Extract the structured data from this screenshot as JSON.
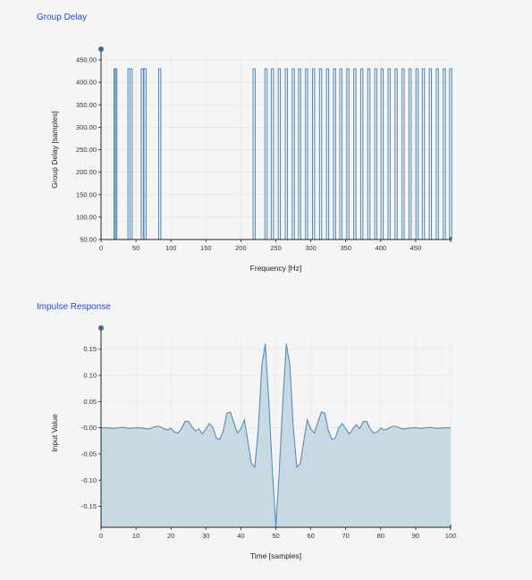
{
  "chart_data": [
    {
      "type": "line",
      "title": "Group Delay",
      "xlabel": "Frequency [Hz]",
      "ylabel": "Group Delay [samples]",
      "xlim": [
        0,
        500
      ],
      "ylim": [
        50,
        450
      ],
      "x_ticks": [
        0,
        50,
        100,
        150,
        200,
        250,
        300,
        350,
        400,
        450
      ],
      "y_ticks": [
        "50.00",
        "100.00",
        "150.00",
        "200.00",
        "250.00",
        "300.00",
        "350.00",
        "400.00",
        "450.00"
      ],
      "baseline": 50,
      "spike_value": 430,
      "spikes_x": [
        20,
        21,
        40,
        43,
        59,
        63,
        84,
        219,
        236,
        245,
        255,
        265,
        275,
        284,
        294,
        304,
        314,
        324,
        334,
        343,
        353,
        363,
        373,
        383,
        393,
        402,
        412,
        422,
        432,
        442,
        452,
        461,
        471,
        481,
        491,
        500
      ],
      "color": "#5b8db8"
    },
    {
      "type": "area",
      "title": "Impulse Response",
      "xlabel": "Time [samples]",
      "ylabel": "Input Value",
      "xlim": [
        0,
        100
      ],
      "ylim": [
        -0.19,
        0.17
      ],
      "x_ticks": [
        0,
        10,
        20,
        30,
        40,
        50,
        60,
        70,
        80,
        90,
        100
      ],
      "y_ticks": [
        "0.15",
        "0.10",
        "0.05",
        "-0.00",
        "-0.05",
        "-0.10",
        "-0.15"
      ],
      "x": [
        0,
        1,
        2,
        3,
        4,
        5,
        6,
        7,
        8,
        9,
        10,
        11,
        12,
        13,
        14,
        15,
        16,
        17,
        18,
        19,
        20,
        21,
        22,
        23,
        24,
        25,
        26,
        27,
        28,
        29,
        30,
        31,
        32,
        33,
        34,
        35,
        36,
        37,
        38,
        39,
        40,
        41,
        42,
        43,
        44,
        45,
        46,
        47,
        48,
        49,
        50,
        51,
        52,
        53,
        54,
        55,
        56,
        57,
        58,
        59,
        60,
        61,
        62,
        63,
        64,
        65,
        66,
        67,
        68,
        69,
        70,
        71,
        72,
        73,
        74,
        75,
        76,
        77,
        78,
        79,
        80,
        81,
        82,
        83,
        84,
        85,
        86,
        87,
        88,
        89,
        90,
        91,
        92,
        93,
        94,
        95,
        96,
        97,
        98,
        99,
        100
      ],
      "values": [
        0.0,
        0.0,
        0.0,
        -0.001,
        -0.001,
        0.0,
        0.001,
        0.0,
        -0.001,
        -0.001,
        0.0,
        0.0,
        -0.001,
        -0.002,
        -0.002,
        0.001,
        0.003,
        0.002,
        -0.002,
        -0.004,
        -0.001,
        -0.008,
        -0.01,
        -0.002,
        0.012,
        0.012,
        0.002,
        -0.006,
        -0.002,
        -0.012,
        -0.002,
        0.008,
        0.0,
        -0.02,
        -0.022,
        -0.005,
        0.028,
        0.03,
        0.01,
        -0.01,
        -0.002,
        0.015,
        -0.025,
        -0.068,
        -0.075,
        0.0,
        0.12,
        0.16,
        0.05,
        -0.08,
        -0.19,
        -0.08,
        0.05,
        0.16,
        0.12,
        0.0,
        -0.075,
        -0.068,
        -0.025,
        0.015,
        -0.002,
        -0.01,
        0.01,
        0.03,
        0.028,
        -0.005,
        -0.022,
        -0.02,
        0.0,
        0.008,
        -0.002,
        -0.012,
        -0.002,
        0.006,
        -0.002,
        0.012,
        0.012,
        -0.002,
        -0.01,
        -0.008,
        -0.001,
        -0.004,
        -0.002,
        0.002,
        0.003,
        0.001,
        -0.002,
        -0.002,
        -0.001,
        0.0,
        0.0,
        -0.001,
        -0.001,
        0.0,
        0.001,
        0.0,
        -0.001,
        -0.001,
        0.0,
        0.0,
        0.0
      ],
      "color": "#5b8db8",
      "fill": "#c7d9e3"
    }
  ]
}
